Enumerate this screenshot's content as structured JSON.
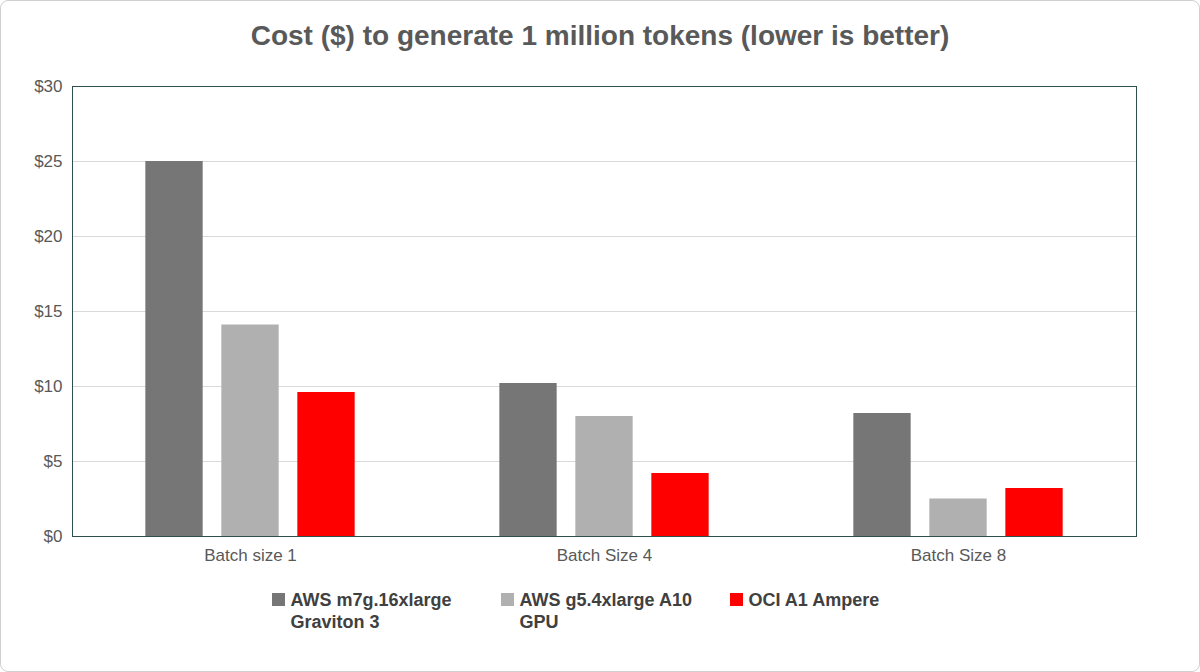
{
  "chart_data": {
    "type": "bar",
    "title": "Cost ($) to generate 1 million tokens (lower is better)",
    "categories": [
      "Batch size 1",
      "Batch Size 4",
      "Batch Size 8"
    ],
    "series": [
      {
        "name": "AWS m7g.16xlarge Graviton 3",
        "color": "#767676",
        "values": [
          25,
          10.2,
          8.2
        ]
      },
      {
        "name": "AWS g5.4xlarge A10 GPU",
        "color": "#b0b0b0",
        "values": [
          14.1,
          8.0,
          2.5
        ]
      },
      {
        "name": "OCI A1 Ampere",
        "color": "#ff0000",
        "values": [
          9.6,
          4.2,
          3.2
        ]
      }
    ],
    "ylim": [
      0,
      30
    ],
    "yticks": [
      {
        "value": 0,
        "label": "$0"
      },
      {
        "value": 5,
        "label": "$5"
      },
      {
        "value": 10,
        "label": "$10"
      },
      {
        "value": 15,
        "label": "$15"
      },
      {
        "value": 20,
        "label": "$20"
      },
      {
        "value": 25,
        "label": "$25"
      },
      {
        "value": 30,
        "label": "$30"
      }
    ],
    "grid": true,
    "legend": "bottom"
  }
}
